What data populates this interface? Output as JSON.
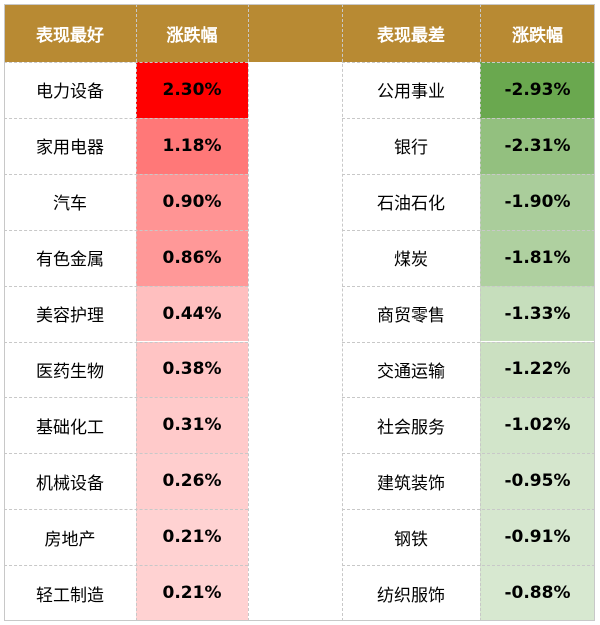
{
  "colors": {
    "header_bg": "#b88a33",
    "header_text": "#ffffff",
    "grid": "#c8c8c8",
    "positive_full": "#ff0000",
    "negative_full": "#6aa84f",
    "cell_bg": "#ffffff"
  },
  "headers": {
    "best": "表现最好",
    "best_change": "涨跌幅",
    "worst": "表现最差",
    "worst_change": "涨跌幅"
  },
  "chart_data": {
    "type": "table",
    "columns": [
      "表现最好",
      "涨跌幅",
      "表现最差",
      "涨跌幅"
    ],
    "best": [
      {
        "industry": "电力设备",
        "change": "2.30%",
        "value": 2.3
      },
      {
        "industry": "家用电器",
        "change": "1.18%",
        "value": 1.18
      },
      {
        "industry": "汽车",
        "change": "0.90%",
        "value": 0.9
      },
      {
        "industry": "有色金属",
        "change": "0.86%",
        "value": 0.86
      },
      {
        "industry": "美容护理",
        "change": "0.44%",
        "value": 0.44
      },
      {
        "industry": "医药生物",
        "change": "0.38%",
        "value": 0.38
      },
      {
        "industry": "基础化工",
        "change": "0.31%",
        "value": 0.31
      },
      {
        "industry": "机械设备",
        "change": "0.26%",
        "value": 0.26
      },
      {
        "industry": "房地产",
        "change": "0.21%",
        "value": 0.21
      },
      {
        "industry": "轻工制造",
        "change": "0.21%",
        "value": 0.21
      }
    ],
    "worst": [
      {
        "industry": "公用事业",
        "change": "-2.93%",
        "value": -2.93
      },
      {
        "industry": "银行",
        "change": "-2.31%",
        "value": -2.31
      },
      {
        "industry": "石油石化",
        "change": "-1.90%",
        "value": -1.9
      },
      {
        "industry": "煤炭",
        "change": "-1.81%",
        "value": -1.81
      },
      {
        "industry": "商贸零售",
        "change": "-1.33%",
        "value": -1.33
      },
      {
        "industry": "交通运输",
        "change": "-1.22%",
        "value": -1.22
      },
      {
        "industry": "社会服务",
        "change": "-1.02%",
        "value": -1.02
      },
      {
        "industry": "建筑装饰",
        "change": "-0.95%",
        "value": -0.95
      },
      {
        "industry": "钢铁",
        "change": "-0.91%",
        "value": -0.91
      },
      {
        "industry": "纺织服饰",
        "change": "-0.88%",
        "value": -0.88
      }
    ]
  }
}
